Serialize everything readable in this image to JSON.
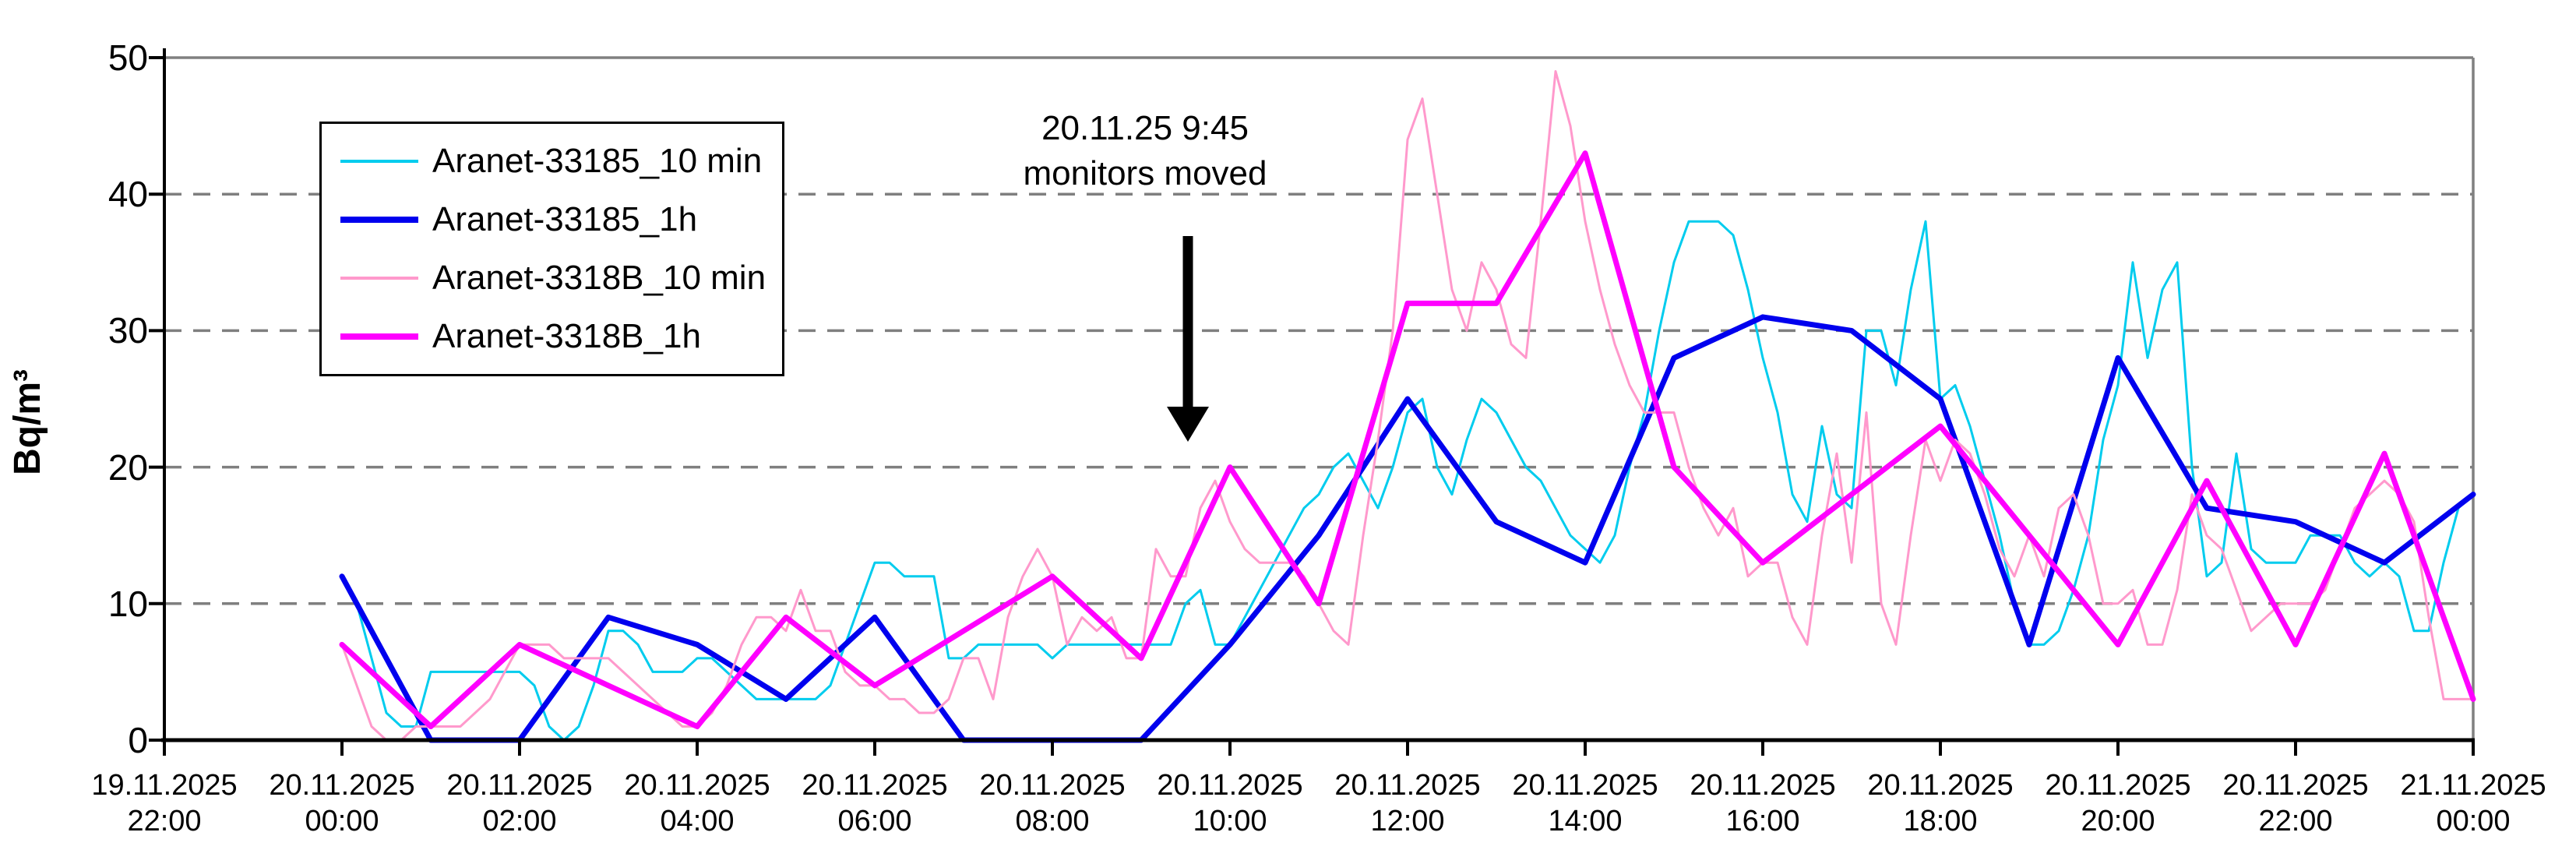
{
  "chart_data": {
    "type": "line",
    "title": "",
    "xlabel": "",
    "ylabel": "Bq/m³",
    "ylim": [
      0,
      50
    ],
    "yticks": [
      0,
      10,
      20,
      30,
      40,
      50
    ],
    "grid": "horizontal-dashed",
    "legend_position": "top-left-inside",
    "time_span_hours": 26,
    "x_ticks": [
      {
        "date": "19.11.2025",
        "time": "22:00"
      },
      {
        "date": "20.11.2025",
        "time": "00:00"
      },
      {
        "date": "20.11.2025",
        "time": "02:00"
      },
      {
        "date": "20.11.2025",
        "time": "04:00"
      },
      {
        "date": "20.11.2025",
        "time": "06:00"
      },
      {
        "date": "20.11.2025",
        "time": "08:00"
      },
      {
        "date": "20.11.2025",
        "time": "10:00"
      },
      {
        "date": "20.11.2025",
        "time": "12:00"
      },
      {
        "date": "20.11.2025",
        "time": "14:00"
      },
      {
        "date": "20.11.2025",
        "time": "16:00"
      },
      {
        "date": "20.11.2025",
        "time": "18:00"
      },
      {
        "date": "20.11.2025",
        "time": "20:00"
      },
      {
        "date": "20.11.2025",
        "time": "22:00"
      },
      {
        "date": "21.11.2025",
        "time": "00:00"
      }
    ],
    "annotation": {
      "line1": "20.11.25 9:45",
      "line2": "monitors moved",
      "arrow_points_to_time": "20.11.2025 09:45"
    },
    "colors": {
      "grid": "#7F7F7F",
      "frame": "#808080",
      "axis": "#000000",
      "text": "#000000"
    },
    "series": [
      {
        "name": "Aranet-33185_10 min",
        "color": "#00CCEE",
        "thickness": "thin",
        "start_hour_offset": 2,
        "interval_minutes": 10,
        "values": [
          12,
          10,
          6,
          2,
          1,
          1,
          5,
          5,
          5,
          5,
          5,
          5,
          5,
          4,
          1,
          0,
          1,
          4,
          8,
          8,
          7,
          5,
          5,
          5,
          6,
          6,
          5,
          4,
          3,
          3,
          3,
          3,
          3,
          4,
          7,
          10,
          13,
          13,
          12,
          12,
          12,
          6,
          6,
          7,
          7,
          7,
          7,
          7,
          6,
          7,
          7,
          7,
          7,
          7,
          7,
          7,
          7,
          10,
          11,
          7,
          7,
          9,
          11,
          13,
          15,
          17,
          18,
          20,
          21,
          19,
          17,
          20,
          24,
          25,
          20,
          18,
          22,
          25,
          24,
          22,
          20,
          19,
          17,
          15,
          14,
          13,
          15,
          20,
          24,
          30,
          35,
          38,
          38,
          38,
          37,
          33,
          28,
          24,
          18,
          16,
          23,
          18,
          17,
          30,
          30,
          26,
          33,
          38,
          25,
          26,
          23,
          19,
          15,
          10,
          7,
          7,
          8,
          11,
          15,
          22,
          26,
          35,
          28,
          33,
          35,
          20,
          12,
          13,
          21,
          14,
          13,
          13,
          13,
          15,
          15,
          15,
          13,
          12,
          13,
          12,
          8,
          8,
          13,
          17,
          18
        ]
      },
      {
        "name": "Aranet-33185_1h",
        "color": "#0000EE",
        "thickness": "thick",
        "start_hour_offset": 2,
        "interval_minutes": 60,
        "values": [
          12,
          0,
          0,
          9,
          7,
          3,
          9,
          0,
          0,
          0,
          7,
          15,
          25,
          16,
          13,
          28,
          31,
          30,
          25,
          7,
          28,
          17,
          16,
          13,
          18
        ]
      },
      {
        "name": "Aranet-3318B_10 min",
        "color": "#FF99CC",
        "thickness": "thin",
        "start_hour_offset": 2,
        "interval_minutes": 10,
        "values": [
          7,
          4,
          1,
          0,
          0,
          1,
          1,
          1,
          1,
          2,
          3,
          5,
          7,
          7,
          7,
          6,
          6,
          6,
          6,
          5,
          4,
          3,
          2,
          1,
          1,
          2,
          4,
          7,
          9,
          9,
          8,
          11,
          8,
          8,
          5,
          4,
          4,
          3,
          3,
          2,
          2,
          3,
          6,
          6,
          3,
          9,
          12,
          14,
          12,
          7,
          9,
          8,
          9,
          6,
          6,
          14,
          12,
          12,
          17,
          19,
          16,
          14,
          13,
          13,
          13,
          12,
          10,
          8,
          7,
          15,
          22,
          30,
          44,
          47,
          40,
          33,
          30,
          35,
          33,
          29,
          28,
          38,
          49,
          45,
          38,
          33,
          29,
          26,
          24,
          24,
          24,
          20,
          17,
          15,
          17,
          12,
          13,
          13,
          9,
          7,
          15,
          21,
          13,
          24,
          10,
          7,
          15,
          22,
          19,
          22,
          21,
          18,
          14,
          12,
          15,
          12,
          17,
          18,
          15,
          10,
          10,
          11,
          7,
          7,
          11,
          18,
          15,
          14,
          11,
          8,
          9,
          10,
          10,
          10,
          11,
          14,
          17,
          18,
          19,
          18,
          16,
          9,
          3,
          3,
          3
        ]
      },
      {
        "name": "Aranet-3318B_1h",
        "color": "#FF00FF",
        "thickness": "thick",
        "start_hour_offset": 2,
        "interval_minutes": 60,
        "values": [
          7,
          1,
          7,
          4,
          1,
          9,
          4,
          8,
          12,
          6,
          20,
          10,
          32,
          32,
          43,
          20,
          13,
          18,
          23,
          15,
          7,
          19,
          7,
          21,
          3
        ]
      }
    ]
  }
}
